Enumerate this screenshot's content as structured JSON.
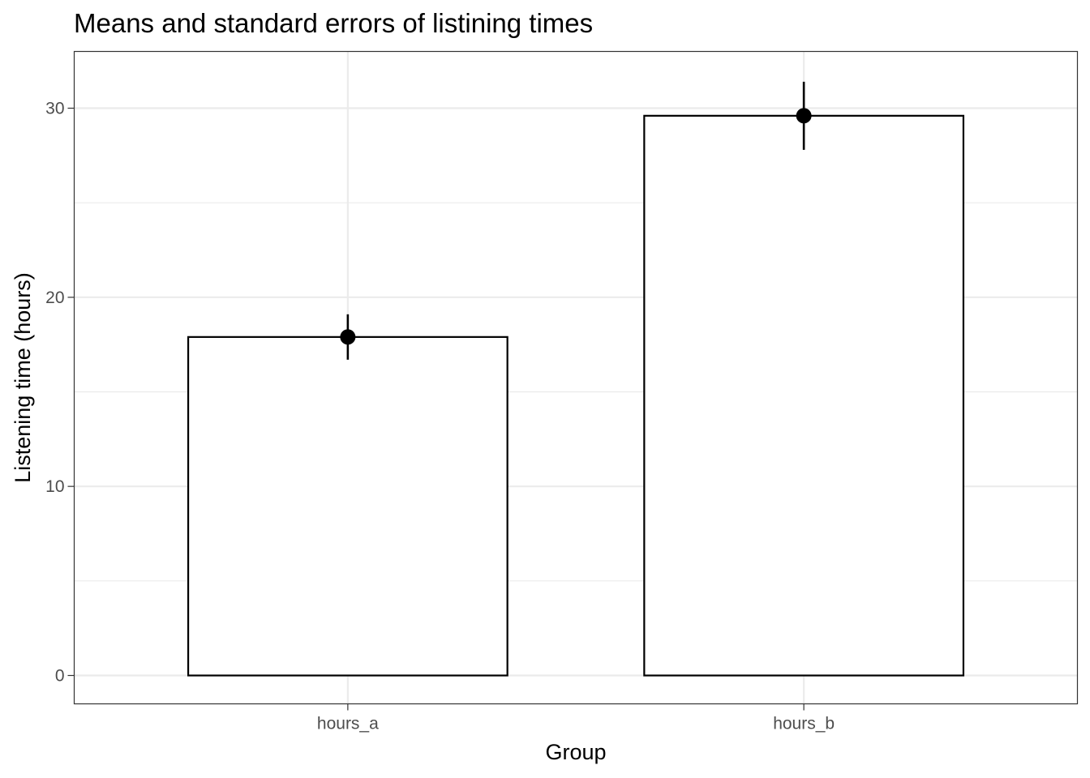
{
  "chart_data": {
    "type": "bar",
    "title": "Means and standard errors of listining times",
    "xlabel": "Group",
    "ylabel": "Listening time (hours)",
    "categories": [
      "hours_a",
      "hours_b"
    ],
    "values": [
      17.9,
      29.6
    ],
    "error_low": [
      16.7,
      27.8
    ],
    "error_high": [
      19.1,
      31.4
    ],
    "ylim": [
      -1.5,
      33
    ],
    "yticks": [
      0,
      10,
      20,
      30
    ],
    "ytick_labels": [
      "0",
      "10",
      "20",
      "30"
    ],
    "grid": true,
    "bar_fill": "#ffffff",
    "bar_stroke": "#000000",
    "point_color": "#000000",
    "grid_color": "#ebebeb",
    "panel_border_color": "#333333"
  }
}
